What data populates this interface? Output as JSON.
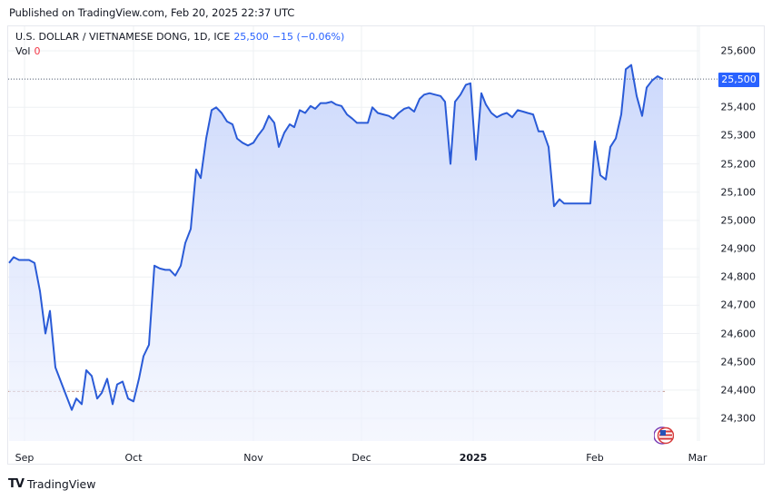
{
  "header": {
    "published": "Published on TradingView.com, Feb 20, 2025 22:37 UTC"
  },
  "legend": {
    "symbol": "U.S. DOLLAR / VIETNAMESE DONG, 1D, ICE",
    "last_price": "25,500",
    "change": "−15 (−0.06%)",
    "vol_label": "Vol",
    "vol_value": "0"
  },
  "price_tag": "25,500",
  "footer": {
    "brand": "TradingView",
    "logo": "TV"
  },
  "colors": {
    "line": "#2a5bd7",
    "fill_top": "#c9d6fb",
    "fill_bottom": "#eef2fe",
    "accent": "#2962ff",
    "negative": "#f23645",
    "grid": "#eef0f3",
    "baseline": "#b2776f"
  },
  "chart_data": {
    "type": "area",
    "title": "U.S. DOLLAR / VIETNAMESE DONG, 1D, ICE",
    "xlabel": "",
    "ylabel": "",
    "ylim": [
      24220,
      25700
    ],
    "grid": true,
    "legend_position": "top-left",
    "y_ticks": [
      "25,600",
      "25,500",
      "25,400",
      "25,300",
      "25,200",
      "25,100",
      "25,000",
      "24,900",
      "24,800",
      "24,700",
      "24,600",
      "24,500",
      "24,400",
      "24,300"
    ],
    "x_ticks": [
      "Sep",
      "Oct",
      "Nov",
      "Dec",
      "2025",
      "Feb",
      "Mar"
    ],
    "last_value": 25500,
    "reference_line": 24395,
    "series": [
      {
        "name": "USD/VND",
        "points": [
          {
            "x": 10,
            "y": 24850
          },
          {
            "x": 15,
            "y": 24870
          },
          {
            "x": 21,
            "y": 24860
          },
          {
            "x": 32,
            "y": 24860
          },
          {
            "x": 38,
            "y": 24850
          },
          {
            "x": 44,
            "y": 24750
          },
          {
            "x": 50,
            "y": 24600
          },
          {
            "x": 55,
            "y": 24680
          },
          {
            "x": 61,
            "y": 24480
          },
          {
            "x": 67,
            "y": 24430
          },
          {
            "x": 73,
            "y": 24380
          },
          {
            "x": 79,
            "y": 24330
          },
          {
            "x": 84,
            "y": 24370
          },
          {
            "x": 90,
            "y": 24350
          },
          {
            "x": 95,
            "y": 24470
          },
          {
            "x": 101,
            "y": 24450
          },
          {
            "x": 107,
            "y": 24370
          },
          {
            "x": 112,
            "y": 24390
          },
          {
            "x": 118,
            "y": 24440
          },
          {
            "x": 124,
            "y": 24350
          },
          {
            "x": 129,
            "y": 24420
          },
          {
            "x": 135,
            "y": 24430
          },
          {
            "x": 141,
            "y": 24370
          },
          {
            "x": 147,
            "y": 24360
          },
          {
            "x": 153,
            "y": 24440
          },
          {
            "x": 158,
            "y": 24520
          },
          {
            "x": 164,
            "y": 24560
          },
          {
            "x": 170,
            "y": 24840
          },
          {
            "x": 176,
            "y": 24830
          },
          {
            "x": 182,
            "y": 24825
          },
          {
            "x": 187,
            "y": 24825
          },
          {
            "x": 193,
            "y": 24805
          },
          {
            "x": 199,
            "y": 24840
          },
          {
            "x": 204,
            "y": 24920
          },
          {
            "x": 210,
            "y": 24970
          },
          {
            "x": 216,
            "y": 25180
          },
          {
            "x": 221,
            "y": 25150
          },
          {
            "x": 227,
            "y": 25290
          },
          {
            "x": 233,
            "y": 25390
          },
          {
            "x": 238,
            "y": 25400
          },
          {
            "x": 244,
            "y": 25380
          },
          {
            "x": 250,
            "y": 25350
          },
          {
            "x": 256,
            "y": 25340
          },
          {
            "x": 261,
            "y": 25290
          },
          {
            "x": 267,
            "y": 25275
          },
          {
            "x": 273,
            "y": 25265
          },
          {
            "x": 279,
            "y": 25275
          },
          {
            "x": 284,
            "y": 25300
          },
          {
            "x": 290,
            "y": 25325
          },
          {
            "x": 296,
            "y": 25370
          },
          {
            "x": 302,
            "y": 25345
          },
          {
            "x": 307,
            "y": 25260
          },
          {
            "x": 313,
            "y": 25310
          },
          {
            "x": 319,
            "y": 25340
          },
          {
            "x": 324,
            "y": 25330
          },
          {
            "x": 330,
            "y": 25390
          },
          {
            "x": 336,
            "y": 25380
          },
          {
            "x": 342,
            "y": 25405
          },
          {
            "x": 347,
            "y": 25395
          },
          {
            "x": 353,
            "y": 25415
          },
          {
            "x": 359,
            "y": 25415
          },
          {
            "x": 365,
            "y": 25420
          },
          {
            "x": 370,
            "y": 25410
          },
          {
            "x": 376,
            "y": 25405
          },
          {
            "x": 382,
            "y": 25375
          },
          {
            "x": 388,
            "y": 25360
          },
          {
            "x": 393,
            "y": 25345
          },
          {
            "x": 399,
            "y": 25345
          },
          {
            "x": 405,
            "y": 25345
          },
          {
            "x": 410,
            "y": 25400
          },
          {
            "x": 416,
            "y": 25380
          },
          {
            "x": 422,
            "y": 25375
          },
          {
            "x": 428,
            "y": 25370
          },
          {
            "x": 433,
            "y": 25360
          },
          {
            "x": 439,
            "y": 25380
          },
          {
            "x": 445,
            "y": 25395
          },
          {
            "x": 450,
            "y": 25400
          },
          {
            "x": 456,
            "y": 25385
          },
          {
            "x": 462,
            "y": 25430
          },
          {
            "x": 467,
            "y": 25445
          },
          {
            "x": 473,
            "y": 25450
          },
          {
            "x": 479,
            "y": 25445
          },
          {
            "x": 485,
            "y": 25440
          },
          {
            "x": 490,
            "y": 25420
          },
          {
            "x": 496,
            "y": 25200
          },
          {
            "x": 501,
            "y": 25420
          },
          {
            "x": 507,
            "y": 25445
          },
          {
            "x": 513,
            "y": 25480
          },
          {
            "x": 518,
            "y": 25485
          },
          {
            "x": 524,
            "y": 25215
          },
          {
            "x": 530,
            "y": 25450
          },
          {
            "x": 535,
            "y": 25410
          },
          {
            "x": 541,
            "y": 25380
          },
          {
            "x": 547,
            "y": 25365
          },
          {
            "x": 553,
            "y": 25375
          },
          {
            "x": 558,
            "y": 25380
          },
          {
            "x": 564,
            "y": 25365
          },
          {
            "x": 570,
            "y": 25390
          },
          {
            "x": 576,
            "y": 25385
          },
          {
            "x": 581,
            "y": 25380
          },
          {
            "x": 587,
            "y": 25375
          },
          {
            "x": 593,
            "y": 25315
          },
          {
            "x": 598,
            "y": 25315
          },
          {
            "x": 604,
            "y": 25260
          },
          {
            "x": 610,
            "y": 25050
          },
          {
            "x": 616,
            "y": 25075
          },
          {
            "x": 621,
            "y": 25060
          },
          {
            "x": 650,
            "y": 25060
          },
          {
            "x": 655,
            "y": 25280
          },
          {
            "x": 661,
            "y": 25160
          },
          {
            "x": 667,
            "y": 25145
          },
          {
            "x": 672,
            "y": 25260
          },
          {
            "x": 678,
            "y": 25290
          },
          {
            "x": 684,
            "y": 25375
          },
          {
            "x": 689,
            "y": 25535
          },
          {
            "x": 695,
            "y": 25550
          },
          {
            "x": 701,
            "y": 25440
          },
          {
            "x": 707,
            "y": 25370
          },
          {
            "x": 712,
            "y": 25470
          },
          {
            "x": 718,
            "y": 25495
          },
          {
            "x": 724,
            "y": 25510
          },
          {
            "x": 730,
            "y": 25500
          }
        ]
      }
    ]
  }
}
